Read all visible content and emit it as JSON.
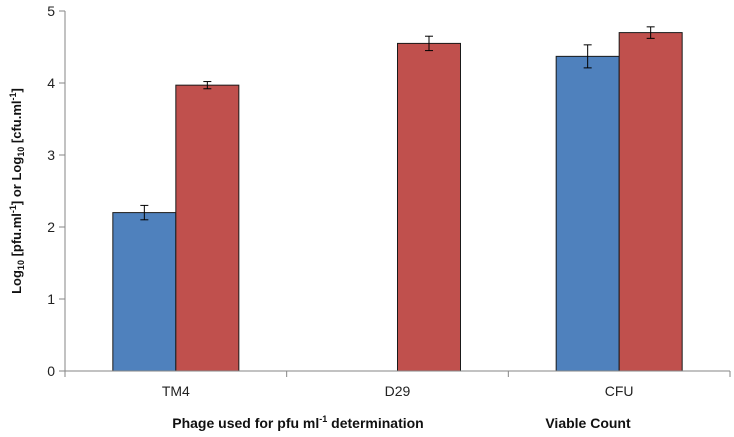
{
  "chart_data": {
    "type": "bar",
    "categories": [
      "TM4",
      "D29",
      "CFU"
    ],
    "series": [
      {
        "values": [
          2.2,
          null,
          4.37
        ],
        "errors": [
          0.1,
          null,
          0.16
        ],
        "color": "#4f81bd"
      },
      {
        "values": [
          3.97,
          4.55,
          4.7
        ],
        "errors": [
          0.05,
          0.1,
          0.08
        ],
        "color": "#c0504d"
      }
    ],
    "ylim": [
      0,
      5
    ],
    "yticks": [
      0,
      1,
      2,
      3,
      4,
      5
    ],
    "ylabel": {
      "p1": "Log",
      "s1": "10",
      "p2": " [pfu.ml",
      "e1": "-1",
      "p3": "] or Log",
      "s2": "10",
      "p4": " [cfu.ml",
      "e2": "-1",
      "p5": "]"
    },
    "xlabel_groups": [
      {
        "pre": "Phage used for pfu ml",
        "sup": "-1",
        "post": " determination"
      },
      {
        "pre": "Viable Count",
        "sup": "",
        "post": ""
      }
    ],
    "grid": false,
    "legend": "none"
  }
}
